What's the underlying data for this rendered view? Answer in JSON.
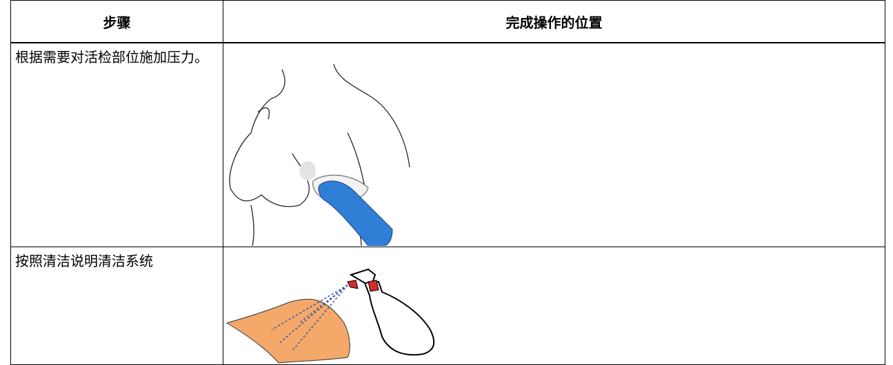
{
  "table": {
    "header": [
      "步骤",
      "完成操作的位置"
    ],
    "rows": [
      [
        "根据需要对活检部位施加压力。"
      ],
      [
        "按照清洁说明清洁系统"
      ]
    ]
  }
}
